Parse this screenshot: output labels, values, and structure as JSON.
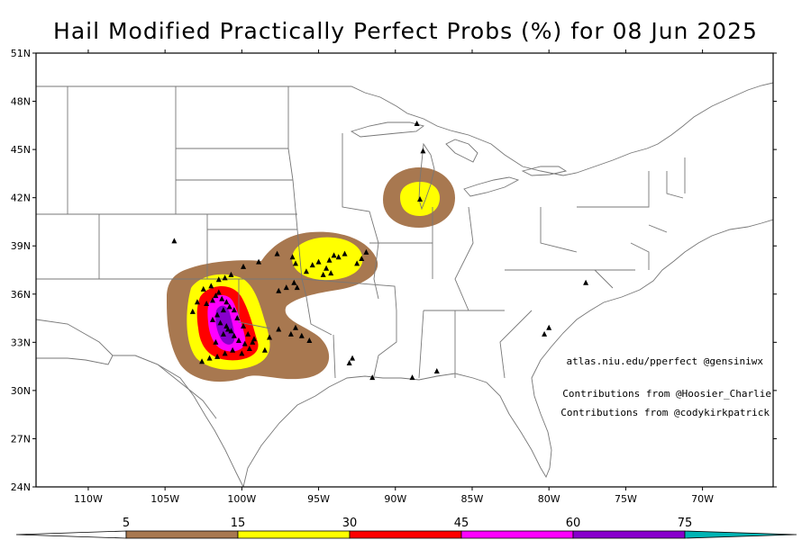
{
  "title": "Hail Modified Practically Perfect Probs (%) for 08 Jun 2025",
  "lat_labels": [
    "51N",
    "48N",
    "45N",
    "42N",
    "39N",
    "36N",
    "33N",
    "30N",
    "27N",
    "24N"
  ],
  "lon_labels": [
    "110W",
    "105W",
    "100W",
    "95W",
    "90W",
    "85W",
    "80W",
    "75W",
    "70W"
  ],
  "credits": [
    "atlas.niu.edu/pperfect @gensiniwx",
    "Contributions from @Hoosier_Charlie",
    "Contributions from @codykirkpatrick"
  ],
  "colorbar": {
    "labels": [
      "5",
      "15",
      "30",
      "45",
      "60",
      "75"
    ],
    "colors": [
      "#a87850",
      "#ffff00",
      "#ff0000",
      "#ff00ff",
      "#8800cc",
      "#00b4b4"
    ]
  },
  "contour_colors": {
    "p5": "#a87850",
    "p15": "#ffff00",
    "p30": "#ff0000",
    "p45": "#ff00ff",
    "p60": "#8800cc"
  },
  "reports": [
    [
      104.4,
      39.3
    ],
    [
      102.0,
      36.5
    ],
    [
      101.5,
      36.9
    ],
    [
      101.1,
      37.0
    ],
    [
      100.7,
      37.2
    ],
    [
      99.9,
      37.7
    ],
    [
      98.9,
      38.0
    ],
    [
      97.7,
      38.5
    ],
    [
      96.7,
      38.3
    ],
    [
      96.5,
      37.9
    ],
    [
      95.8,
      37.4
    ],
    [
      95.4,
      37.8
    ],
    [
      95.0,
      38.0
    ],
    [
      94.5,
      37.6
    ],
    [
      94.3,
      38.1
    ],
    [
      94.0,
      38.4
    ],
    [
      93.7,
      38.3
    ],
    [
      93.3,
      38.5
    ],
    [
      94.7,
      37.2
    ],
    [
      94.2,
      37.3
    ],
    [
      92.5,
      37.9
    ],
    [
      92.2,
      38.2
    ],
    [
      91.9,
      38.6
    ],
    [
      96.4,
      36.4
    ],
    [
      96.6,
      36.7
    ],
    [
      97.1,
      36.4
    ],
    [
      97.6,
      36.2
    ],
    [
      102.5,
      36.3
    ],
    [
      102.9,
      35.5
    ],
    [
      103.2,
      34.9
    ],
    [
      102.3,
      35.4
    ],
    [
      101.9,
      35.6
    ],
    [
      101.7,
      35.9
    ],
    [
      101.5,
      36.1
    ],
    [
      101.3,
      35.7
    ],
    [
      101.0,
      35.5
    ],
    [
      100.8,
      35.2
    ],
    [
      100.5,
      35.0
    ],
    [
      101.2,
      35.0
    ],
    [
      101.6,
      34.7
    ],
    [
      101.9,
      34.4
    ],
    [
      101.4,
      34.2
    ],
    [
      101.0,
      34.0
    ],
    [
      100.7,
      33.7
    ],
    [
      101.2,
      33.5
    ],
    [
      100.5,
      33.4
    ],
    [
      100.2,
      33.1
    ],
    [
      99.8,
      32.9
    ],
    [
      99.5,
      32.6
    ],
    [
      100.0,
      32.3
    ],
    [
      100.6,
      32.5
    ],
    [
      101.1,
      32.3
    ],
    [
      101.6,
      32.1
    ],
    [
      102.1,
      32.0
    ],
    [
      102.6,
      31.8
    ],
    [
      100.3,
      34.5
    ],
    [
      99.9,
      34.0
    ],
    [
      99.6,
      33.5
    ],
    [
      99.2,
      33.2
    ],
    [
      98.2,
      33.3
    ],
    [
      98.5,
      32.5
    ],
    [
      97.6,
      33.8
    ],
    [
      96.8,
      33.5
    ],
    [
      96.5,
      33.9
    ],
    [
      96.1,
      33.4
    ],
    [
      95.6,
      33.1
    ],
    [
      93.0,
      31.7
    ],
    [
      92.8,
      32.0
    ],
    [
      91.5,
      30.8
    ],
    [
      88.9,
      30.8
    ],
    [
      87.3,
      31.2
    ],
    [
      88.4,
      41.9
    ],
    [
      88.2,
      44.9
    ],
    [
      88.6,
      46.6
    ],
    [
      77.6,
      36.7
    ],
    [
      80.3,
      33.5
    ],
    [
      80.0,
      33.9
    ],
    [
      99.3,
      33.0
    ],
    [
      100.9,
      33.8
    ],
    [
      101.7,
      33.0
    ]
  ]
}
